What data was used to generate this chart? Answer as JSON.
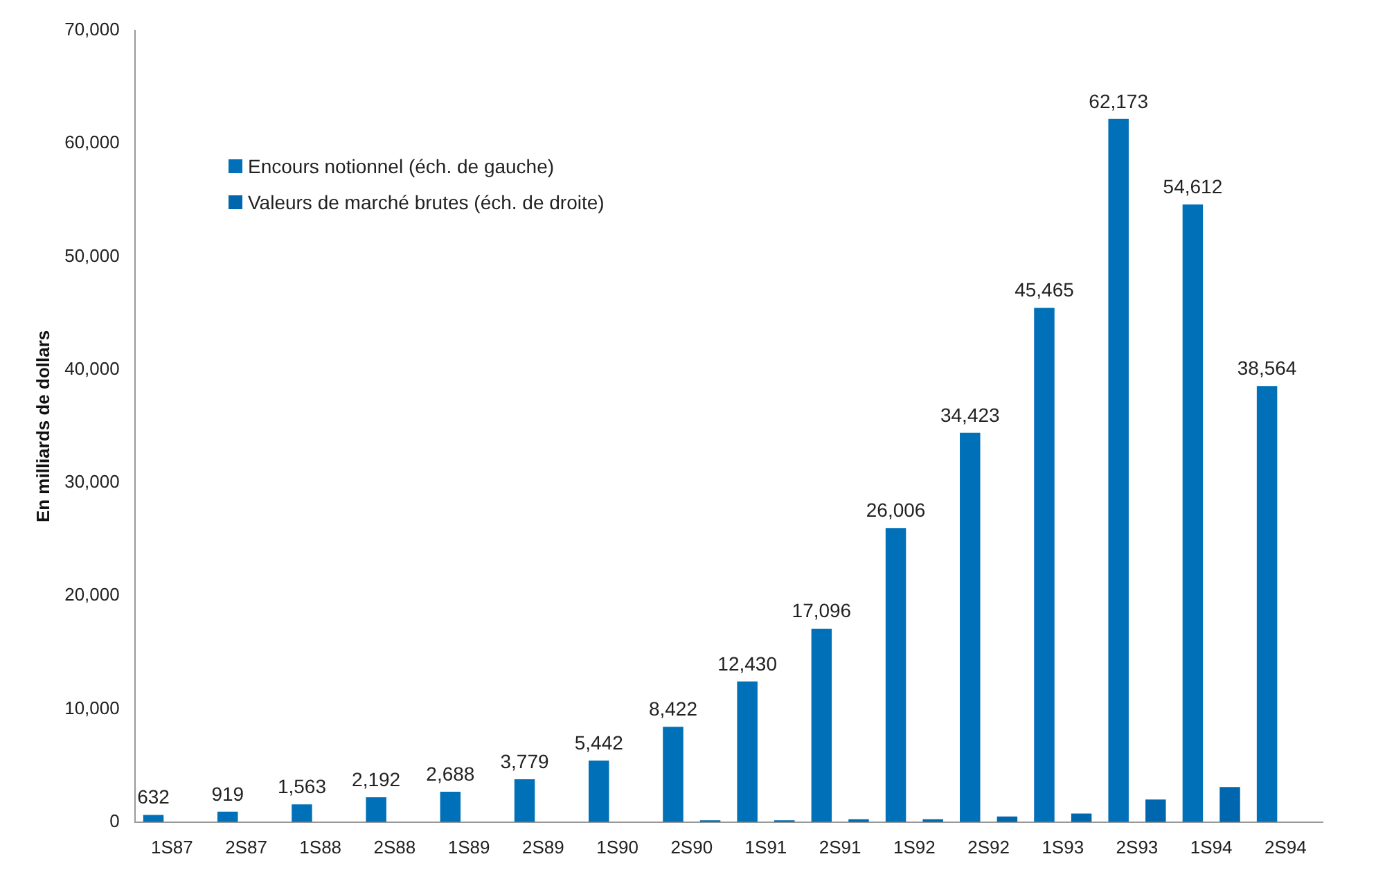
{
  "chart_data": {
    "type": "bar",
    "ylabel": "En milliards de dollars",
    "categories": [
      "1S87",
      "2S87",
      "1S88",
      "2S88",
      "1S89",
      "2S89",
      "1S90",
      "2S90",
      "1S91",
      "2S91",
      "1S92",
      "2S92",
      "1S93",
      "2S93",
      "1S94",
      "2S94"
    ],
    "series": [
      {
        "name": "Encours notionnel (éch. de gauche)",
        "color": "#0070b8",
        "values": [
          632,
          919,
          1563,
          2192,
          2688,
          3779,
          5442,
          8422,
          12430,
          17096,
          26006,
          34423,
          45465,
          62173,
          54612,
          38564
        ],
        "value_labels": [
          "632",
          "919",
          "1,563",
          "2,192",
          "2,688",
          "3,779",
          "5,442",
          "8,422",
          "12,430",
          "17,096",
          "26,006",
          "34,423",
          "45,465",
          "62,173",
          "54,612",
          "38,564"
        ]
      },
      {
        "name": "Valeurs de marché brutes (éch. de droite)",
        "color": "#0066ad",
        "values": [
          null,
          null,
          null,
          null,
          null,
          null,
          null,
          150,
          150,
          250,
          250,
          500,
          750,
          2000,
          3100,
          null
        ]
      }
    ],
    "ylim": [
      0,
      70000
    ],
    "yticks": [
      {
        "value": 0,
        "label": "0"
      },
      {
        "value": 10000,
        "label": "10,000"
      },
      {
        "value": 20000,
        "label": "20,000"
      },
      {
        "value": 30000,
        "label": "30,000"
      },
      {
        "value": 40000,
        "label": "40,000"
      },
      {
        "value": 50000,
        "label": "50,000"
      },
      {
        "value": 60000,
        "label": "60,000"
      },
      {
        "value": 70000,
        "label": "70,000"
      }
    ],
    "grid": false,
    "legend": "top left"
  }
}
